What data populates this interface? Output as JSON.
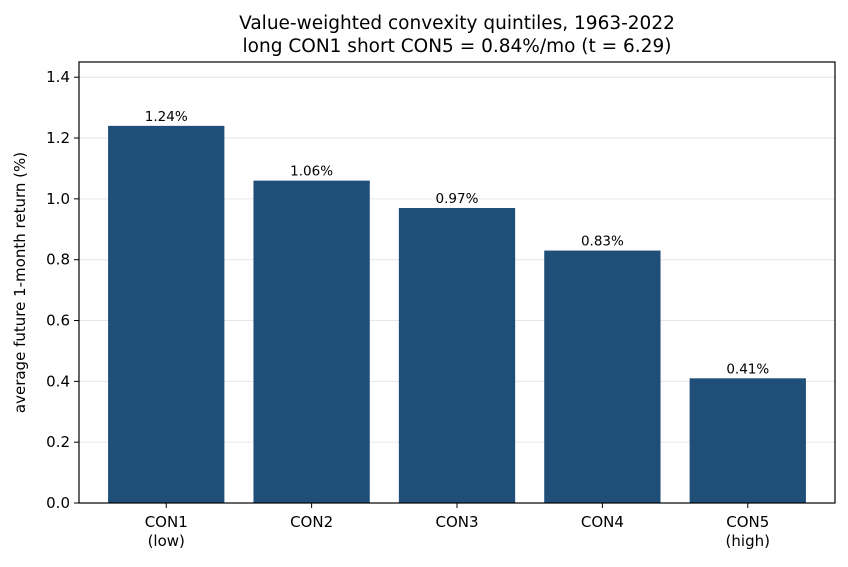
{
  "chart_data": {
    "type": "bar",
    "title": "Value-weighted convexity quintiles, 1963-2022",
    "subtitle": "long CON1 short CON5 = 0.84%/mo (t = 6.29)",
    "xlabel": "",
    "ylabel": "average future 1-month return (%)",
    "categories": [
      [
        "CON1",
        "(low)"
      ],
      [
        "CON2"
      ],
      [
        "CON3"
      ],
      [
        "CON4"
      ],
      [
        "CON5",
        "(high)"
      ]
    ],
    "values": [
      1.24,
      1.06,
      0.97,
      0.83,
      0.41
    ],
    "data_labels": [
      "1.24%",
      "1.06%",
      "0.97%",
      "0.83%",
      "0.41%"
    ],
    "ylim": [
      0,
      1.45
    ],
    "yticks": [
      0.0,
      0.2,
      0.4,
      0.6,
      0.8,
      1.0,
      1.2,
      1.4
    ],
    "ytick_labels": [
      "0.0",
      "0.2",
      "0.4",
      "0.6",
      "0.8",
      "1.0",
      "1.2",
      "1.4"
    ],
    "grid": "y",
    "bar_color": "#1f4e79",
    "grid_color": "#e6e6e6"
  }
}
